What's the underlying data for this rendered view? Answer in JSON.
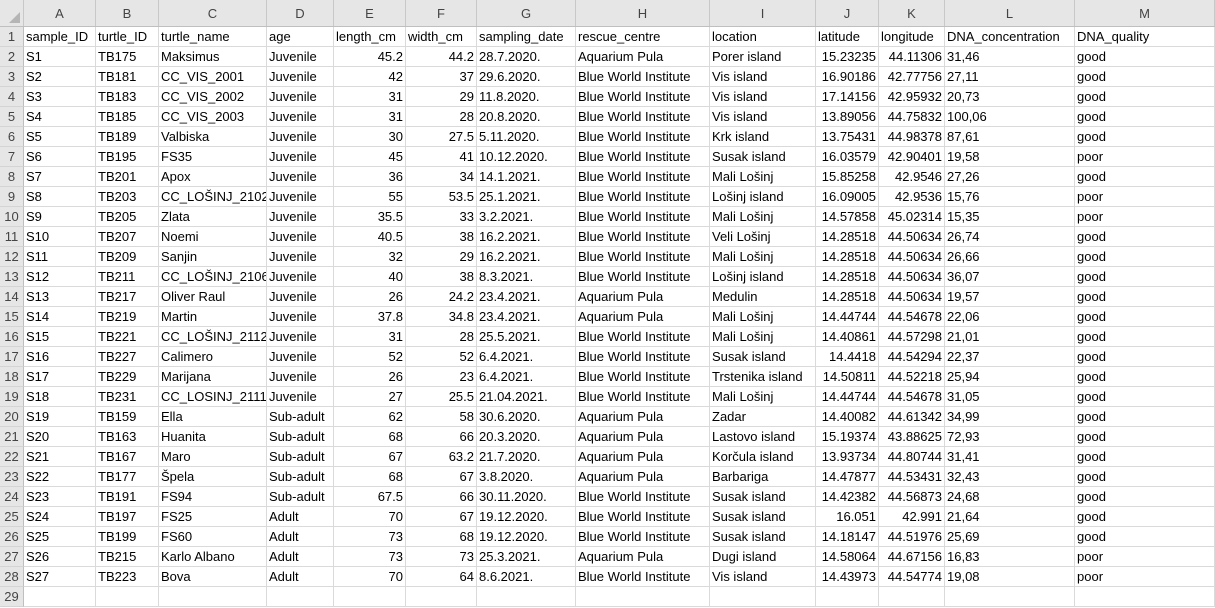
{
  "column_letters": [
    "A",
    "B",
    "C",
    "D",
    "E",
    "F",
    "G",
    "H",
    "I",
    "J",
    "K",
    "L",
    "M"
  ],
  "header_row": [
    "sample_ID",
    "turtle_ID",
    "turtle_name",
    "age",
    "length_cm",
    "width_cm",
    "sampling_date",
    "rescue_centre",
    "location",
    "latitude",
    "longitude",
    "DNA_concentration",
    "DNA_quality"
  ],
  "rows": [
    [
      "S1",
      "TB175",
      "Maksimus",
      "Juvenile",
      "45.2",
      "44.2",
      "28.7.2020.",
      "Aquarium Pula",
      "Porer island",
      "15.23235",
      "44.11306",
      "31,46",
      "good"
    ],
    [
      "S2",
      "TB181",
      "CC_VIS_2001",
      "Juvenile",
      "42",
      "37",
      "29.6.2020.",
      "Blue World Institute",
      "Vis island",
      "16.90186",
      "42.77756",
      "27,11",
      "good"
    ],
    [
      "S3",
      "TB183",
      "CC_VIS_2002",
      "Juvenile",
      "31",
      "29",
      "11.8.2020.",
      "Blue World Institute",
      "Vis island",
      "17.14156",
      "42.95932",
      "20,73",
      "good"
    ],
    [
      "S4",
      "TB185",
      "CC_VIS_2003",
      "Juvenile",
      "31",
      "28",
      "20.8.2020.",
      "Blue World Institute",
      "Vis island",
      "13.89056",
      "44.75832",
      "100,06",
      "good"
    ],
    [
      "S5",
      "TB189",
      "Valbiska",
      "Juvenile",
      "30",
      "27.5",
      "5.11.2020.",
      "Blue World Institute",
      "Krk island",
      "13.75431",
      "44.98378",
      "87,61",
      "good"
    ],
    [
      "S6",
      "TB195",
      "FS35",
      "Juvenile",
      "45",
      "41",
      "10.12.2020.",
      "Blue World Institute",
      "Susak island",
      "16.03579",
      "42.90401",
      "19,58",
      "poor"
    ],
    [
      "S7",
      "TB201",
      "Apox",
      "Juvenile",
      "36",
      "34",
      "14.1.2021.",
      "Blue World Institute",
      "Mali Lošinj",
      "15.85258",
      "42.9546",
      "27,26",
      "good"
    ],
    [
      "S8",
      "TB203",
      "CC_LOŠINJ_2102",
      "Juvenile",
      "55",
      "53.5",
      "25.1.2021.",
      "Blue World Institute",
      "Lošinj island",
      "16.09005",
      "42.9536",
      "15,76",
      "poor"
    ],
    [
      "S9",
      "TB205",
      "Zlata",
      "Juvenile",
      "35.5",
      "33",
      "3.2.2021.",
      "Blue World Institute",
      "Mali Lošinj",
      "14.57858",
      "45.02314",
      "15,35",
      "poor"
    ],
    [
      "S10",
      "TB207",
      "Noemi",
      "Juvenile",
      "40.5",
      "38",
      "16.2.2021.",
      "Blue World Institute",
      " Veli Lošinj",
      "14.28518",
      "44.50634",
      "26,74",
      "good"
    ],
    [
      "S11",
      "TB209",
      "Sanjin",
      "Juvenile",
      "32",
      "29",
      "16.2.2021.",
      "Blue World Institute",
      "Mali Lošinj",
      "14.28518",
      "44.50634",
      "26,66",
      "good"
    ],
    [
      "S12",
      "TB211",
      "CC_LOŠINJ_2106",
      "Juvenile",
      "40",
      "38",
      "8.3.2021.",
      "Blue World Institute",
      "Lošinj island",
      "14.28518",
      "44.50634",
      "36,07",
      "good"
    ],
    [
      "S13",
      "TB217",
      "Oliver Raul",
      "Juvenile",
      "26",
      "24.2",
      "23.4.2021.",
      "Aquarium Pula",
      "Medulin",
      "14.28518",
      "44.50634",
      "19,57",
      "good"
    ],
    [
      "S14",
      "TB219",
      "Martin",
      "Juvenile",
      "37.8",
      "34.8",
      "23.4.2021.",
      "Aquarium Pula",
      "Mali Lošinj",
      "14.44744",
      "44.54678",
      "22,06",
      "good"
    ],
    [
      "S15",
      "TB221",
      "CC_LOŠINJ_2112",
      "Juvenile",
      "31",
      "28",
      "25.5.2021.",
      "Blue World Institute",
      "Mali Lošinj",
      "14.40861",
      "44.57298",
      "21,01",
      "good"
    ],
    [
      "S16",
      "TB227",
      "Calimero",
      "Juvenile",
      "52",
      "52",
      "6.4.2021.",
      "Blue World Institute",
      "Susak island",
      "14.4418",
      "44.54294",
      "22,37",
      "good"
    ],
    [
      "S17",
      "TB229",
      "Marijana",
      "Juvenile",
      "26",
      "23",
      "6.4.2021.",
      "Blue World Institute",
      "Trstenika island",
      "14.50811",
      "44.52218",
      "25,94",
      "good"
    ],
    [
      "S18",
      "TB231",
      "CC_LOSINJ_2111",
      "Juvenile",
      "27",
      "25.5",
      "21.04.2021.",
      "Blue World Institute",
      "Mali Lošinj",
      "14.44744",
      "44.54678",
      "31,05",
      "good"
    ],
    [
      "S19",
      "TB159",
      "Ella",
      "Sub-adult",
      "62",
      "58",
      "30.6.2020.",
      "Aquarium Pula",
      "Zadar",
      "14.40082",
      "44.61342",
      "34,99",
      "good"
    ],
    [
      "S20",
      "TB163",
      "Huanita",
      "Sub-adult",
      "68",
      "66",
      "20.3.2020.",
      "Aquarium Pula",
      "Lastovo island",
      "15.19374",
      "43.88625",
      "72,93",
      "good"
    ],
    [
      "S21",
      "TB167",
      "Maro",
      "Sub-adult",
      "67",
      "63.2",
      "21.7.2020.",
      "Aquarium Pula",
      "Korčula island",
      "13.93734",
      "44.80744",
      "31,41",
      "good"
    ],
    [
      "S22",
      "TB177",
      "Špela",
      "Sub-adult",
      "68",
      "67",
      "3.8.2020.",
      "Aquarium Pula",
      "Barbariga",
      "14.47877",
      "44.53431",
      "32,43",
      "good"
    ],
    [
      "S23",
      "TB191",
      "FS94",
      "Sub-adult",
      "67.5",
      "66",
      "30.11.2020.",
      "Blue World Institute",
      "Susak island",
      "14.42382",
      "44.56873",
      "24,68",
      "good"
    ],
    [
      "S24",
      "TB197",
      "FS25",
      "Adult",
      "70",
      "67",
      "19.12.2020.",
      "Blue World Institute",
      "Susak island",
      "16.051",
      "42.991",
      "21,64",
      "good"
    ],
    [
      "S25",
      "TB199",
      "FS60",
      "Adult",
      "73",
      "68",
      "19.12.2020.",
      "Blue World Institute",
      "Susak island",
      "14.18147",
      "44.51976",
      "25,69",
      "good"
    ],
    [
      "S26",
      "TB215",
      "Karlo Albano",
      "Adult",
      "73",
      "73",
      "25.3.2021.",
      "Aquarium Pula",
      "Dugi island",
      "14.58064",
      "44.67156",
      "16,83",
      "poor"
    ],
    [
      "S27",
      "TB223",
      "Bova",
      "Adult",
      "70",
      "64",
      "8.6.2021.",
      "Blue World Institute",
      "Vis island",
      "14.43973",
      "44.54774",
      "19,08",
      "poor"
    ]
  ]
}
